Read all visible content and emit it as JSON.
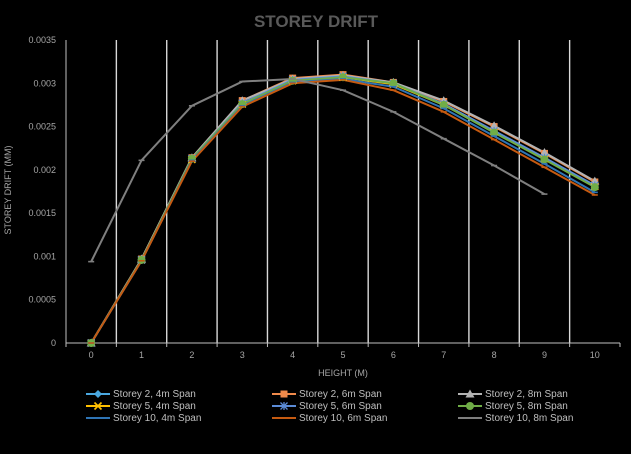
{
  "chart_data": {
    "type": "line",
    "title": "STOREY DRIFT",
    "xlabel": "HEIGHT (M)",
    "ylabel": "STOREY DRIFT (MM)",
    "x": [
      0,
      1,
      2,
      3,
      4,
      5,
      6,
      7,
      8,
      9,
      10
    ],
    "xlim": [
      -0.5,
      10.5
    ],
    "ylim": [
      0,
      0.0035
    ],
    "yticks": [
      "0",
      "0.0005",
      "0.001",
      "0.0015",
      "0.002",
      "0.0025",
      "0.003",
      "0.0035"
    ],
    "grid": "vertical",
    "legend_position": "bottom",
    "series": [
      {
        "name": "Storey 2, 4m Span",
        "color": "#4aa8e0",
        "marker": "diamond",
        "values": [
          0,
          0.00096,
          0.00213,
          0.00277,
          0.00304,
          0.00308,
          0.003,
          0.00276,
          0.00245,
          0.00214,
          0.00182
        ]
      },
      {
        "name": "Storey 2, 6m Span",
        "color": "#f08a4b",
        "marker": "square",
        "values": [
          0,
          0.00097,
          0.00214,
          0.0028,
          0.00306,
          0.0031,
          0.00301,
          0.00279,
          0.0025,
          0.00219,
          0.00186
        ]
      },
      {
        "name": "Storey 2, 8m Span",
        "color": "#b3b3b3",
        "marker": "triangle",
        "values": [
          0,
          0.00097,
          0.00214,
          0.0028,
          0.00305,
          0.00309,
          0.00301,
          0.0028,
          0.00251,
          0.0022,
          0.00187
        ]
      },
      {
        "name": "Storey 5, 4m Span",
        "color": "#ffc000",
        "marker": "x",
        "values": [
          0,
          0.00096,
          0.00212,
          0.00276,
          0.00303,
          0.00307,
          0.00299,
          0.00275,
          0.00244,
          0.00213,
          0.00181
        ]
      },
      {
        "name": "Storey 5, 6m Span",
        "color": "#5b8bd6",
        "marker": "star",
        "values": [
          0,
          0.00096,
          0.00213,
          0.00277,
          0.00304,
          0.00308,
          0.003,
          0.00276,
          0.00245,
          0.00214,
          0.00182
        ]
      },
      {
        "name": "Storey 5, 8m Span",
        "color": "#70ad47",
        "marker": "circle",
        "values": [
          0,
          0.00096,
          0.00213,
          0.00276,
          0.00303,
          0.00307,
          0.003,
          0.00275,
          0.00243,
          0.00212,
          0.0018
        ]
      },
      {
        "name": "Storey 10, 4m Span",
        "color": "#2f75b5",
        "marker": "dash",
        "values": [
          0,
          0.00095,
          0.00211,
          0.00274,
          0.00301,
          0.00305,
          0.00296,
          0.00271,
          0.00239,
          0.00207,
          0.00174
        ]
      },
      {
        "name": "Storey 10, 6m Span",
        "color": "#c55a11",
        "marker": "dash",
        "values": [
          0,
          0.00095,
          0.0021,
          0.00273,
          0.003,
          0.00304,
          0.00292,
          0.00267,
          0.00235,
          0.00203,
          0.00171
        ]
      },
      {
        "name": "Storey 10, 8m Span",
        "color": "#7f7f7f",
        "marker": "dash",
        "values": [
          0.00094,
          0.00211,
          0.00274,
          0.00302,
          0.00305,
          0.00292,
          0.00267,
          0.00236,
          0.00205,
          0.00172,
          null
        ]
      }
    ]
  }
}
